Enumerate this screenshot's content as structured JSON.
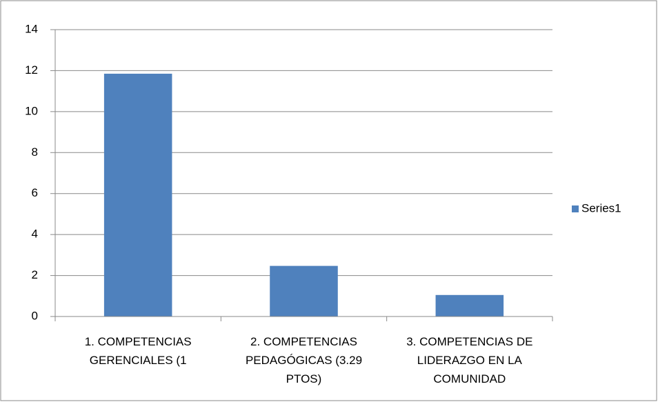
{
  "chart_data": {
    "type": "bar",
    "categories": [
      "1. COMPETENCIAS GERENCIALES  (1",
      "2. COMPETENCIAS PEDAGÓGICAS  (3.29 PTOS)",
      "3. COMPETENCIAS DE LIDERAZGO EN LA COMUNIDAD"
    ],
    "series": [
      {
        "name": "Series1",
        "color": "#4f81bd",
        "values": [
          11.85,
          2.47,
          1.05
        ]
      }
    ],
    "ylim": [
      0,
      14
    ],
    "yticks": [
      0,
      2,
      4,
      6,
      8,
      10,
      12,
      14
    ],
    "grid": true,
    "legend": "right"
  }
}
